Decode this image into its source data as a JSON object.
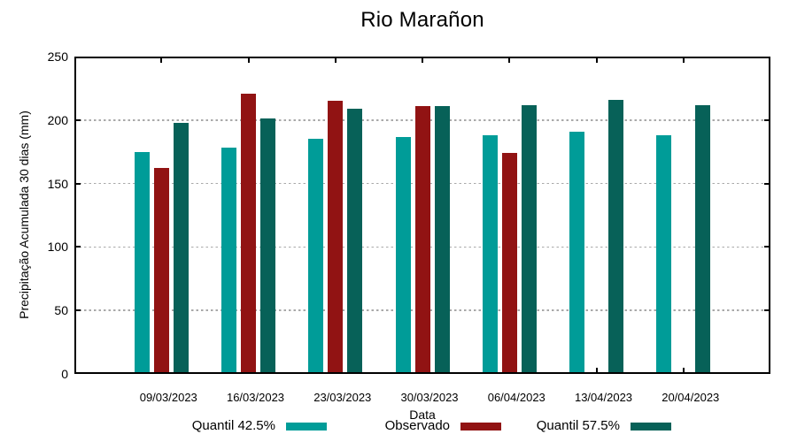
{
  "chart_data": {
    "type": "bar",
    "title": "Rio Marañon",
    "xlabel": "Data",
    "ylabel": "Precipitação Acumulada 30 dias (mm)",
    "ylim": [
      0,
      250
    ],
    "yticks": [
      0,
      50,
      100,
      150,
      200,
      250
    ],
    "grid": true,
    "grid_color": "#a9a9a9",
    "legend_position": "bottom",
    "background_color": "#ffffff",
    "axis_color": "#000000",
    "categories": [
      "09/03/2023",
      "16/03/2023",
      "23/03/2023",
      "30/03/2023",
      "06/04/2023",
      "13/04/2023",
      "20/04/2023"
    ],
    "series": [
      {
        "name": "Quantil 42.5%",
        "color": "#009c98",
        "values": [
          175,
          178,
          185,
          187,
          188,
          191,
          188
        ]
      },
      {
        "name": "Observado",
        "color": "#911313",
        "values": [
          162,
          221,
          215,
          211,
          174,
          null,
          null
        ]
      },
      {
        "name": "Quantil 57.5%",
        "color": "#076158",
        "values": [
          198,
          201,
          209,
          211,
          212,
          216,
          212
        ]
      }
    ]
  }
}
